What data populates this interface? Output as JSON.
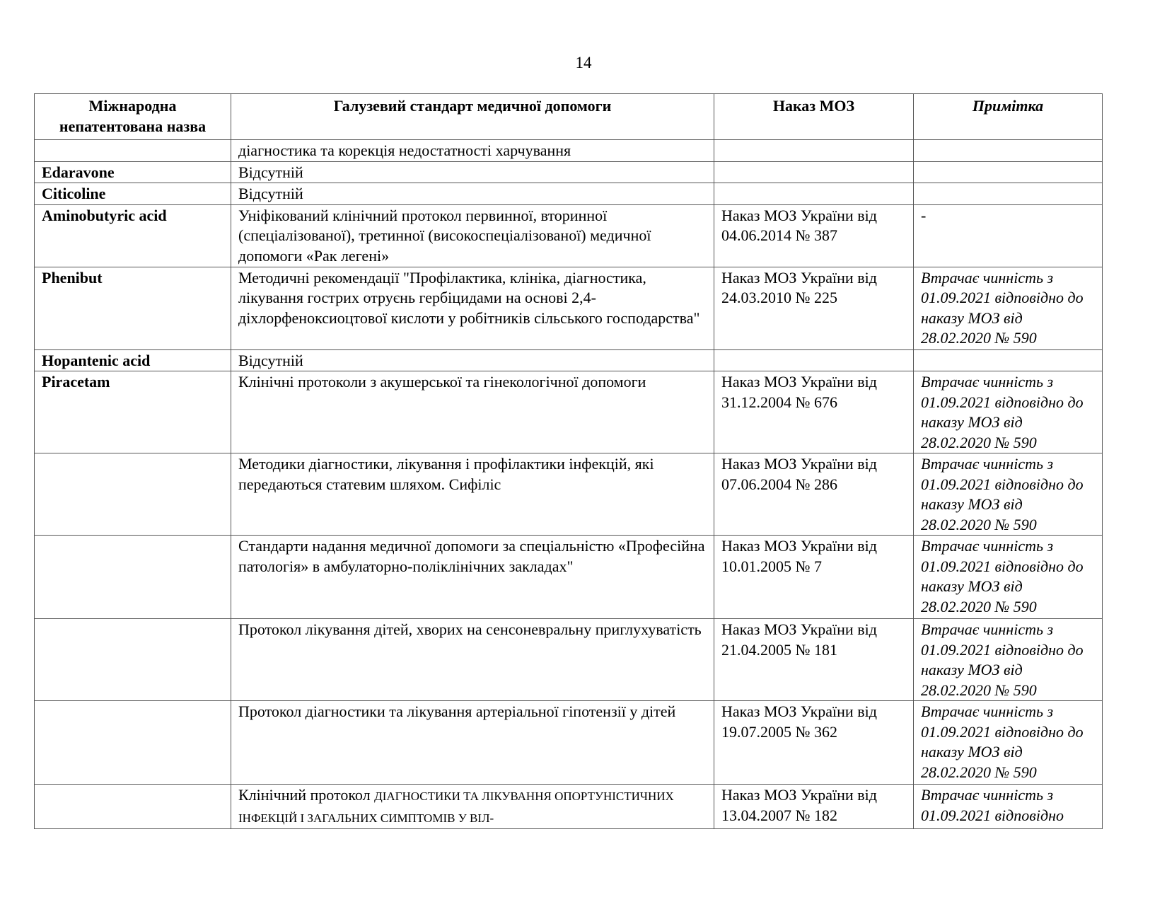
{
  "page_number": "14",
  "table": {
    "headers": [
      "Міжнародна непатентована назва",
      "Галузевий стандарт медичної допомоги",
      "Наказ МОЗ",
      "Примітка"
    ],
    "rows": [
      {
        "name": "",
        "standard": "діагностика та корекція недостатності харчування",
        "order": "",
        "note": ""
      },
      {
        "name": "Edaravone",
        "standard": "Відсутній",
        "order": "",
        "note": ""
      },
      {
        "name": "Citicoline",
        "standard": "Відсутній",
        "order": "",
        "note": ""
      },
      {
        "name": "Aminobutyric acid",
        "standard": "Уніфікований клінічний протокол первинної, вторинної (спеціалізованої), третинної (високоспеціалізованої) медичної допомоги «Рак легені»",
        "order": "Наказ МОЗ України від 04.06.2014 № 387",
        "note": "-"
      },
      {
        "name": "Phenibut",
        "standard": "Методичні рекомендації \"Профілактика, клініка, діагностика, лікування гострих отруєнь гербіцидами на основі 2,4-діхлорфеноксиоцтової кислоти у робітників сільського господарства\"",
        "order": "Наказ МОЗ України від 24.03.2010 № 225",
        "note": "Втрачає чинність з 01.09.2021 відповідно до наказу МОЗ від 28.02.2020  № 590"
      },
      {
        "name": "Hopantenic acid",
        "standard": "Відсутній",
        "order": "",
        "note": ""
      },
      {
        "name": "Piracetam",
        "standard": "Клінічні протоколи з акушерської та гінекологічної допомоги",
        "order": "Наказ МОЗ України від 31.12.2004 № 676",
        "note": "Втрачає чинність з 01.09.2021 відповідно до наказу МОЗ від 28.02.2020  № 590"
      },
      {
        "name": "",
        "standard": "Методики діагностики, лікування і профілактики інфекцій, які передаються статевим шляхом. Сифіліс",
        "order": "Наказ МОЗ України від 07.06.2004 № 286",
        "note": "Втрачає чинність з 01.09.2021 відповідно до наказу МОЗ від 28.02.2020  № 590"
      },
      {
        "name": "",
        "standard": "Стандарти надання медичної допомоги за спеціальністю «Професійна патологія» в амбулаторно-поліклінічних закладах\"",
        "order": "Наказ МОЗ України від 10.01.2005 № 7",
        "note": "Втрачає чинність з 01.09.2021 відповідно до наказу МОЗ від 28.02.2020  № 590"
      },
      {
        "name": "",
        "standard": "Протокол лікування дітей, хворих на сенсоневральну приглухуватість",
        "order": "Наказ МОЗ України від 21.04.2005 № 181",
        "note": "Втрачає чинність з 01.09.2021 відповідно до наказу МОЗ від 28.02.2020  № 590"
      },
      {
        "name": "",
        "standard": "Протокол діагностики та лікування артеріальної гіпотензії у дітей",
        "order": "Наказ МОЗ України від 19.07.2005 № 362",
        "note": "Втрачає чинність з 01.09.2021 відповідно до наказу МОЗ від 28.02.2020  № 590"
      },
      {
        "name": "",
        "standard": "Клінічний протокол",
        "standard_caps": "ДІАГНОСТИКИ ТА ЛІКУВАННЯ ОПОРТУНІСТИЧНИХ ІНФЕКЦІЙ І ЗАГАЛЬНИХ СИМПТОМІВ У ВІЛ-",
        "order": "Наказ МОЗ України від 13.04.2007  № 182",
        "note": "Втрачає чинність з 01.09.2021 відповідно"
      }
    ]
  }
}
